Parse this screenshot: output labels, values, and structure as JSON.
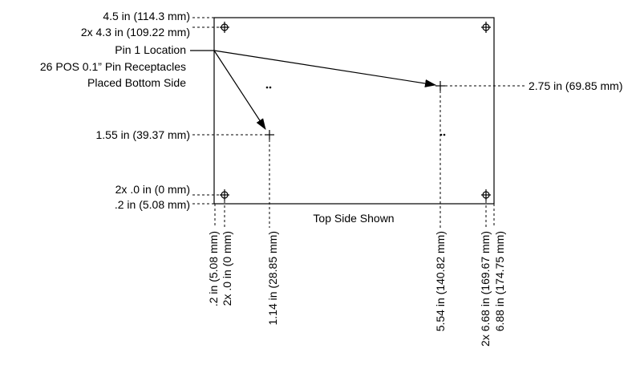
{
  "title_note": "Top Side Shown",
  "callout": {
    "line1": "Pin 1 Location",
    "line2": "26 POS 0.1” Pin Receptacles",
    "line3": "Placed Bottom Side"
  },
  "left_labels": {
    "y_top": "4.5 in (114.3 mm)",
    "y_holes_top": "2x 4.3 in (109.22 mm)",
    "y_pin_left": "1.55 in (39.37 mm)",
    "y_zero": "2x .0 in (0 mm)",
    "y_holes_bottom": ".2 in (5.08 mm)"
  },
  "right_labels": {
    "y_pin_right": "2.75 in (69.85 mm)"
  },
  "bottom_labels": {
    "x_holes_left": ".2 in (5.08 mm)",
    "x_zero": "2x .0 in (0 mm)",
    "x_pin_left": "1.14 in (28.85 mm)",
    "x_pin_right": "5.54 in (140.82 mm)",
    "x_holes_right": "2x 6.68 in (169.67 mm)",
    "x_right": "6.88 in (174.75 mm)"
  },
  "colors": {
    "line": "#000000",
    "background": "#ffffff"
  },
  "icons": {
    "mounting_hole": "crosshair-circle-icon",
    "pin": "plus-marker-icon"
  }
}
